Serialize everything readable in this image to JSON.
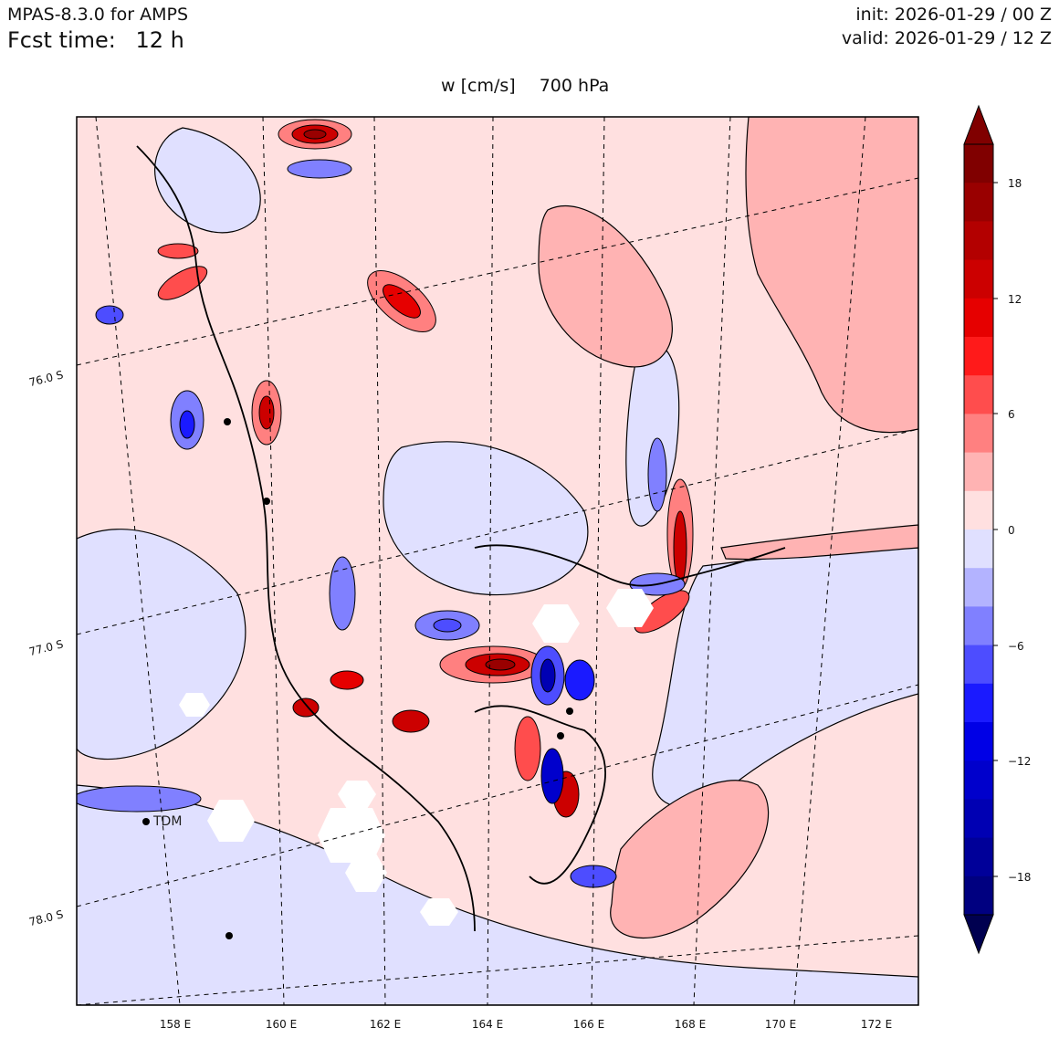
{
  "header": {
    "model": "MPAS-8.3.0 for AMPS",
    "fcst_label": "Fcst time:",
    "fcst_value": "12 h",
    "init": "init: 2026-01-29 / 00 Z",
    "valid": "valid: 2026-01-29 / 12 Z"
  },
  "plot": {
    "variable": "w [cm/s]",
    "level": "700 hPa",
    "lon_labels": [
      "158 E",
      "160 E",
      "162 E",
      "164 E",
      "166 E",
      "168 E",
      "170 E",
      "172 E"
    ],
    "lat_labels": [
      "76.0 S",
      "77.0 S",
      "78.0 S"
    ],
    "station_label": "TDM"
  },
  "colorbar": {
    "ticks": [
      "18",
      "12",
      "6",
      "0",
      "−6",
      "−12",
      "−18"
    ],
    "colors": [
      "#800000",
      "#990000",
      "#b30000",
      "#cc0000",
      "#e60000",
      "#ff1a1a",
      "#ff4d4d",
      "#ff8080",
      "#ffb3b3",
      "#ffe0e0",
      "#e0e0ff",
      "#b3b3ff",
      "#8080ff",
      "#4d4dff",
      "#1a1aff",
      "#0000e6",
      "#0000cc",
      "#0000b3",
      "#000099",
      "#000080"
    ],
    "over_color": "#800000",
    "under_color": "#000050"
  }
}
